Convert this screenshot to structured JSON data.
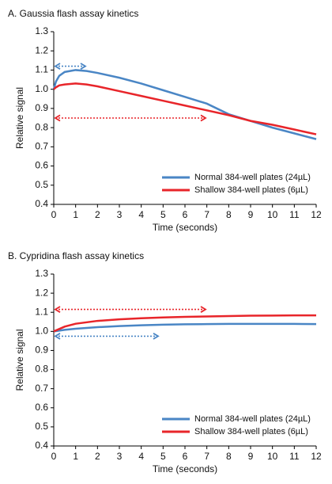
{
  "chart_data": [
    {
      "type": "line",
      "title": "A. Gaussia flash assay kinetics",
      "xlabel": "Time (seconds)",
      "ylabel": "Relative signal",
      "x": [
        0,
        0.1,
        0.25,
        0.5,
        1,
        1.5,
        2,
        3,
        4,
        5,
        6,
        7,
        8,
        9,
        10,
        11,
        12
      ],
      "series": [
        {
          "name": "Normal 384-well plates (24µL)",
          "color": "#4a86c5",
          "values": [
            1.0,
            1.04,
            1.07,
            1.09,
            1.1,
            1.095,
            1.085,
            1.06,
            1.03,
            0.995,
            0.96,
            0.925,
            0.87,
            0.835,
            0.8,
            0.77,
            0.74
          ]
        },
        {
          "name": "Shallow 384-well plates (6µL)",
          "color": "#e8252a",
          "values": [
            1.0,
            1.01,
            1.02,
            1.025,
            1.03,
            1.025,
            1.015,
            0.99,
            0.965,
            0.94,
            0.915,
            0.89,
            0.865,
            0.835,
            0.815,
            0.79,
            0.765
          ]
        }
      ],
      "xlim": [
        0,
        12
      ],
      "xticks": [
        0,
        1,
        2,
        3,
        4,
        5,
        6,
        7,
        8,
        9,
        10,
        11,
        12
      ],
      "ylim": [
        0.4,
        1.3
      ],
      "yticks": [
        0.4,
        0.5,
        0.6,
        0.7,
        0.8,
        0.9,
        {
          "value": 1,
          "label": "1.0"
        },
        1.1,
        1.2,
        1.3
      ],
      "legend": "lower right"
    },
    {
      "type": "line",
      "title": "B. Cypridina flash assay kinetics",
      "xlabel": "Time (seconds)",
      "ylabel": "Relative signal",
      "x": [
        0,
        0.5,
        1,
        2,
        3,
        4,
        5,
        6,
        7,
        8,
        9,
        10,
        11,
        12
      ],
      "series": [
        {
          "name": "Normal 384-well plates (24µL)",
          "color": "#4a86c5",
          "values": [
            1.0,
            1.008,
            1.014,
            1.022,
            1.028,
            1.032,
            1.035,
            1.037,
            1.038,
            1.039,
            1.039,
            1.039,
            1.039,
            1.038
          ]
        },
        {
          "name": "Shallow 384-well plates (6µL)",
          "color": "#e8252a",
          "values": [
            1.0,
            1.025,
            1.04,
            1.055,
            1.063,
            1.069,
            1.073,
            1.076,
            1.078,
            1.08,
            1.082,
            1.083,
            1.084,
            1.084
          ]
        }
      ],
      "xlim": [
        0,
        12
      ],
      "xticks": [
        0,
        1,
        2,
        3,
        4,
        5,
        6,
        7,
        8,
        9,
        10,
        11,
        12
      ],
      "ylim": [
        0.4,
        1.3
      ],
      "yticks": [
        0.4,
        0.5,
        0.6,
        0.7,
        0.8,
        0.9,
        {
          "value": 1,
          "label": "1.0"
        },
        1.1,
        1.2,
        1.3
      ],
      "legend": "lower right"
    }
  ]
}
